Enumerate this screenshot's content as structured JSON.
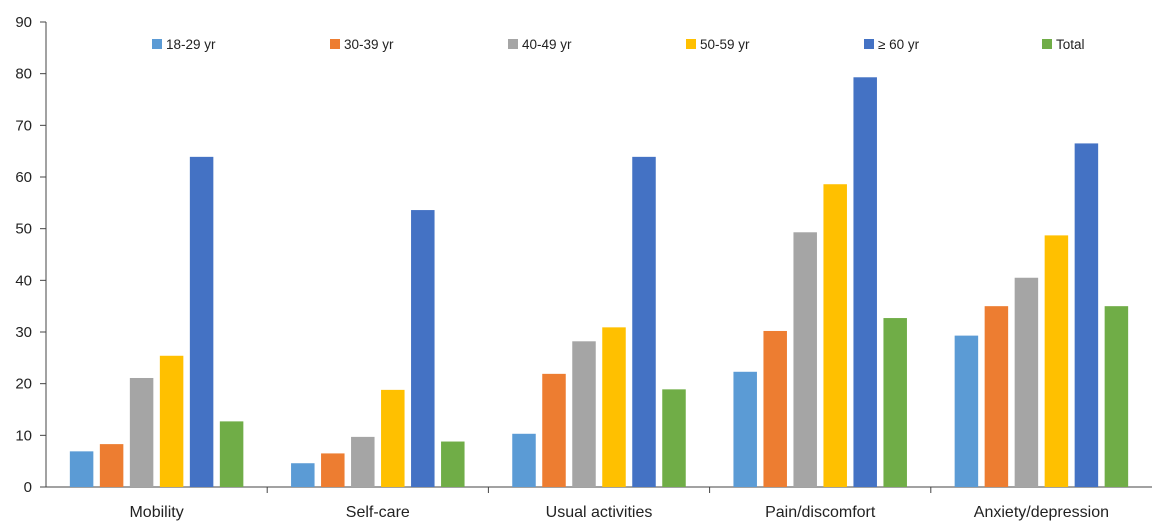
{
  "chart_data": {
    "type": "bar",
    "categories": [
      "Mobility",
      "Self-care",
      "Usual activities",
      "Pain/discomfort",
      "Anxiety/depression"
    ],
    "series": [
      {
        "name": "18-29 yr",
        "color": "#5b9bd5",
        "values": [
          6.9,
          4.6,
          10.3,
          22.3,
          29.3
        ]
      },
      {
        "name": "30-39 yr",
        "color": "#ed7d31",
        "values": [
          8.3,
          6.5,
          21.9,
          30.2,
          35.0
        ]
      },
      {
        "name": "40-49 yr",
        "color": "#a5a5a5",
        "values": [
          21.1,
          9.7,
          28.2,
          49.3,
          40.5
        ]
      },
      {
        "name": "50-59 yr",
        "color": "#ffc000",
        "values": [
          25.4,
          18.8,
          30.9,
          58.6,
          48.7
        ]
      },
      {
        "name": "≥ 60 yr",
        "color": "#4472c4",
        "values": [
          63.9,
          53.6,
          63.9,
          79.3,
          66.5
        ]
      },
      {
        "name": "Total",
        "color": "#70ad47",
        "values": [
          12.7,
          8.8,
          18.9,
          32.7,
          35.0
        ]
      }
    ],
    "title": "",
    "xlabel": "",
    "ylabel": "",
    "ylim": [
      0,
      90
    ],
    "yticks": [
      0,
      10,
      20,
      30,
      40,
      50,
      60,
      70,
      80,
      90
    ],
    "grid": false,
    "legend_position": "top"
  }
}
